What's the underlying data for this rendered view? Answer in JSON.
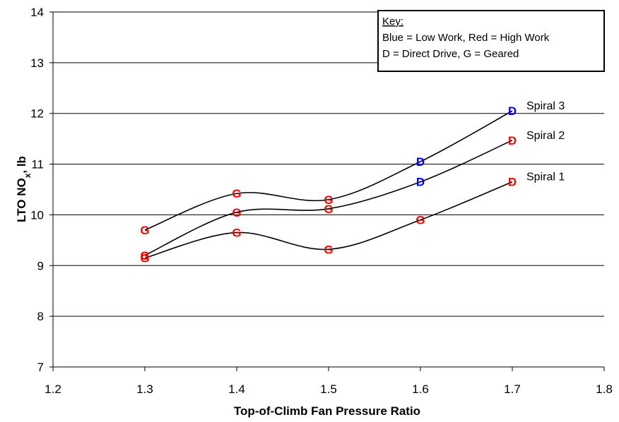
{
  "chart_data": {
    "type": "line",
    "xlabel": "Top-of-Climb Fan Pressure Ratio",
    "ylabel": "LTO NOx, lb",
    "xlim": [
      1.2,
      1.8
    ],
    "ylim": [
      7,
      14
    ],
    "xticks": [
      "1.2",
      "1.3",
      "1.4",
      "1.5",
      "1.6",
      "1.7",
      "1.8"
    ],
    "yticks": [
      "7",
      "8",
      "9",
      "10",
      "11",
      "12",
      "13",
      "14"
    ],
    "grid": "horizontal",
    "series": [
      {
        "name": "Spiral 1",
        "points": [
          {
            "x": 1.3,
            "y": 9.15,
            "label": "G",
            "color": "#ff0000"
          },
          {
            "x": 1.4,
            "y": 9.65,
            "label": "G",
            "color": "#ff0000"
          },
          {
            "x": 1.5,
            "y": 9.32,
            "label": "G",
            "color": "#ff0000"
          },
          {
            "x": 1.6,
            "y": 9.9,
            "label": "G",
            "color": "#ff0000"
          },
          {
            "x": 1.7,
            "y": 10.65,
            "label": "D",
            "color": "#ff0000"
          }
        ]
      },
      {
        "name": "Spiral 2",
        "points": [
          {
            "x": 1.3,
            "y": 9.2,
            "label": "G",
            "color": "#ff0000"
          },
          {
            "x": 1.4,
            "y": 10.05,
            "label": "G",
            "color": "#ff0000"
          },
          {
            "x": 1.5,
            "y": 10.12,
            "label": "G",
            "color": "#ff0000"
          },
          {
            "x": 1.6,
            "y": 10.65,
            "label": "D",
            "color": "#0000ff"
          },
          {
            "x": 1.7,
            "y": 11.47,
            "label": "D",
            "color": "#ff0000"
          }
        ]
      },
      {
        "name": "Spiral 3",
        "points": [
          {
            "x": 1.3,
            "y": 9.7,
            "label": "G",
            "color": "#ff0000"
          },
          {
            "x": 1.4,
            "y": 10.42,
            "label": "G",
            "color": "#ff0000"
          },
          {
            "x": 1.5,
            "y": 10.3,
            "label": "G",
            "color": "#ff0000"
          },
          {
            "x": 1.6,
            "y": 11.05,
            "label": "D",
            "color": "#0000ff"
          },
          {
            "x": 1.7,
            "y": 12.05,
            "label": "D",
            "color": "#0000ff"
          }
        ]
      }
    ],
    "key": {
      "title": "Key:",
      "line1": "Blue = Low Work, Red = High Work",
      "line2": "D = Direct Drive, G = Geared"
    },
    "colors": {
      "low_work": "#0000ff",
      "high_work": "#ff0000"
    }
  }
}
